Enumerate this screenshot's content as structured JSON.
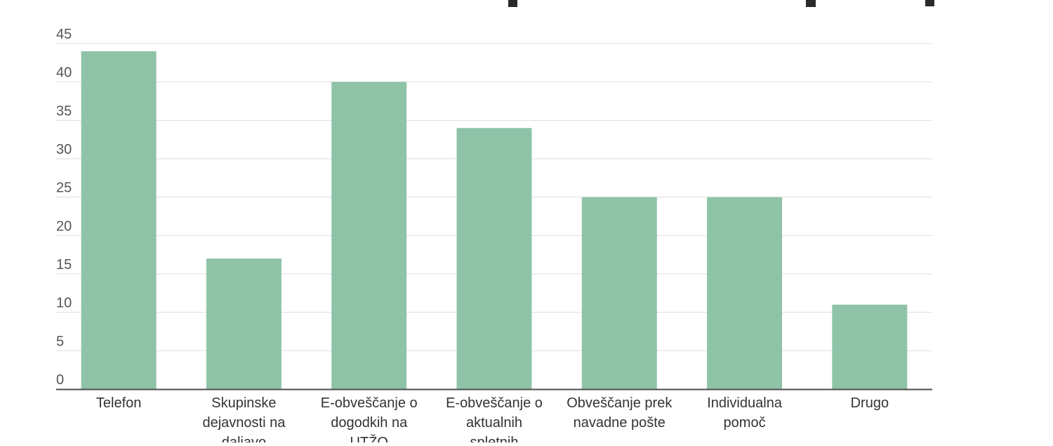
{
  "chart_data": {
    "type": "bar",
    "title": "",
    "xlabel": "",
    "ylabel": "",
    "categories": [
      "Telefon",
      "Skupinske dejavnosti na daljavo",
      "E-obveščanje o dogodkih na UTŽO",
      "E-obveščanje o aktualnih spletnih",
      "Obveščanje prek navadne pošte",
      "Individualna pomoč",
      "Drugo"
    ],
    "category_lines": [
      [
        "Telefon"
      ],
      [
        "Skupinske",
        "dejavnosti na",
        "daljavo"
      ],
      [
        "E-obveščanje o",
        "dogodkih na",
        "UTŽO"
      ],
      [
        "E-obveščanje o",
        "aktualnih",
        "spletnih"
      ],
      [
        "Obveščanje prek",
        "navadne pošte"
      ],
      [
        "Individualna",
        "pomoč"
      ],
      [
        "Drugo"
      ]
    ],
    "values": [
      44,
      17,
      40,
      34,
      25,
      25,
      11
    ],
    "ylim": [
      0,
      45
    ],
    "yticks": [
      "0",
      "5",
      "10",
      "15",
      "20",
      "25",
      "30",
      "35",
      "40",
      "45"
    ],
    "grid": true,
    "bar_color": "#8fc3a7"
  }
}
